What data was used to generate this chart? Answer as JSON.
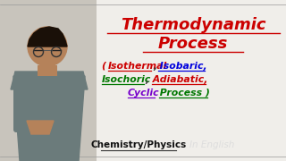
{
  "bg_color": "#e8e5df",
  "whiteboard_color": "#f0eeea",
  "person_bg": "#c8c4bc",
  "title_line1": "Thermodynamic",
  "title_line2": "Process",
  "title_color": "#cc0000",
  "sub_parts_line1": [
    {
      "text": "( Isothermal",
      "color": "#cc0000",
      "underline": true
    },
    {
      "text": ",",
      "color": "#333333",
      "underline": false
    },
    {
      "text": " Isobaric,",
      "color": "#0000dd",
      "underline": true
    }
  ],
  "sub_parts_line2": [
    {
      "text": "Isochoric",
      "color": "#007700",
      "underline": true
    },
    {
      "text": ",",
      "color": "#333333",
      "underline": false
    },
    {
      "text": " Adiabatic,",
      "color": "#cc0000",
      "underline": true
    }
  ],
  "sub_parts_line3": [
    {
      "text": "Cyclic",
      "color": "#7700cc",
      "underline": true
    },
    {
      "text": " Process )",
      "color": "#007700",
      "underline": true
    }
  ],
  "bottom_text1": "Chemistry/Physics",
  "bottom_text2": "In English",
  "skin_color": "#b5825a",
  "shirt_color": "#6b7b7b",
  "hair_color": "#1a1008",
  "board_line_color": "#aaaaaa",
  "bottom_line_color": "#333333"
}
